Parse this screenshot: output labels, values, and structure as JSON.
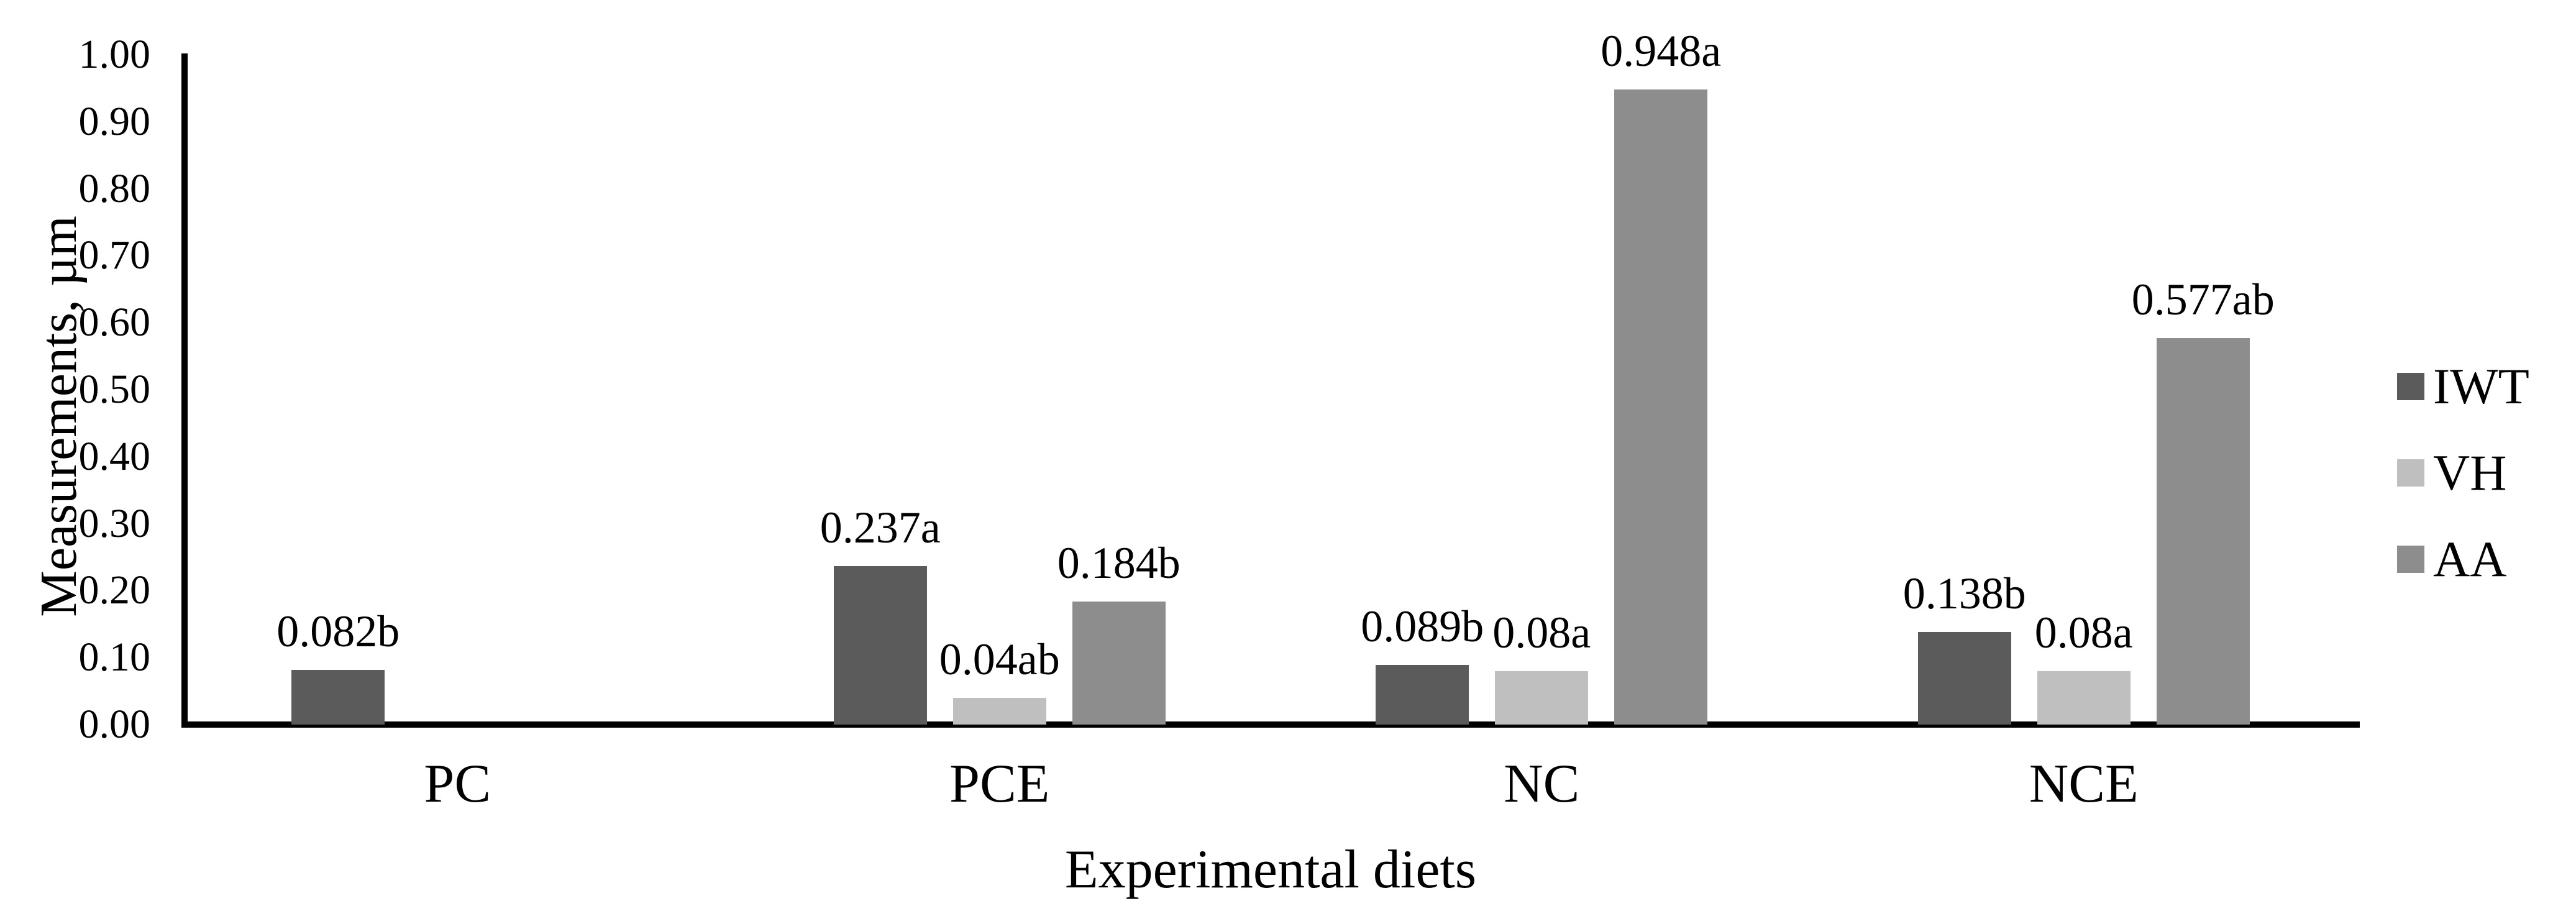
{
  "chart_data": {
    "type": "bar",
    "title": "",
    "xlabel": "Experimental diets",
    "ylabel": "Measurements, µm",
    "ylim": [
      0,
      1
    ],
    "grid": false,
    "legend_position": "right",
    "yticks": [
      {
        "value": 0.0,
        "label": "0.00"
      },
      {
        "value": 0.1,
        "label": "0.10"
      },
      {
        "value": 0.2,
        "label": "0.20"
      },
      {
        "value": 0.3,
        "label": "0.30"
      },
      {
        "value": 0.4,
        "label": "0.40"
      },
      {
        "value": 0.5,
        "label": "0.50"
      },
      {
        "value": 0.6,
        "label": "0.60"
      },
      {
        "value": 0.7,
        "label": "0.70"
      },
      {
        "value": 0.8,
        "label": "0.80"
      },
      {
        "value": 0.9,
        "label": "0.90"
      },
      {
        "value": 1.0,
        "label": "1.00"
      }
    ],
    "categories": [
      "PC",
      "PCE",
      "NC",
      "NCE"
    ],
    "series": [
      {
        "name": "IWT",
        "color": "#5b5b5b",
        "values": [
          0.082,
          0.237,
          0.089,
          0.138
        ],
        "labels": [
          "0.082b",
          "0.237a",
          "0.089b",
          "0.138b"
        ]
      },
      {
        "name": "VH",
        "color": "#bfbfbf",
        "values": [
          0,
          0.04,
          0.08,
          0.08
        ],
        "labels": [
          null,
          "0.04ab",
          "0.08a",
          "0.08a"
        ]
      },
      {
        "name": "AA",
        "color": "#8d8d8d",
        "values": [
          0,
          0.184,
          0.948,
          0.577
        ],
        "labels": [
          null,
          "0.184b",
          "0.948a",
          "0.577ab"
        ]
      }
    ],
    "axis_color": "#000000",
    "text_color": "#000000"
  }
}
